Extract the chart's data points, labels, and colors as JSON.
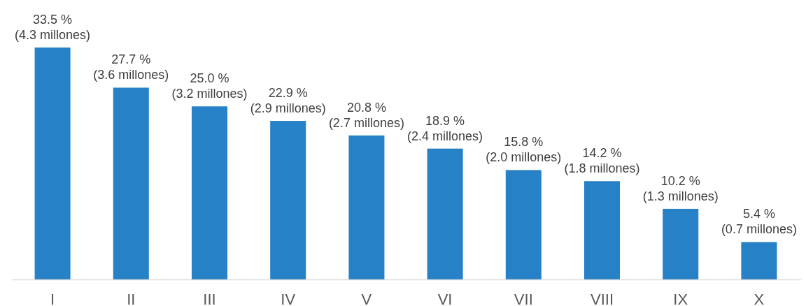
{
  "chart_data": {
    "type": "bar",
    "categories": [
      "I",
      "II",
      "III",
      "IV",
      "V",
      "VI",
      "VII",
      "VIII",
      "IX",
      "X"
    ],
    "values": [
      33.5,
      27.7,
      25.0,
      22.9,
      20.8,
      18.9,
      15.8,
      14.2,
      10.2,
      5.4
    ],
    "color": "#2781c6",
    "value_labels": [
      "33.5 %\n(4.3 millones)",
      "27.7 %\n(3.6 millones)",
      "25.0 %\n(3.2 millones)",
      "22.9 %\n(2.9 millones)",
      "20.8 %\n(2.7 millones)",
      "18.9 %\n(2.4 millones)",
      "15.8 %\n(2.0 millones)",
      "14.2 %\n(1.8 millones)",
      "10.2 %\n(1.3 millones)",
      "5.4 %\n(0.7 millones)"
    ]
  }
}
